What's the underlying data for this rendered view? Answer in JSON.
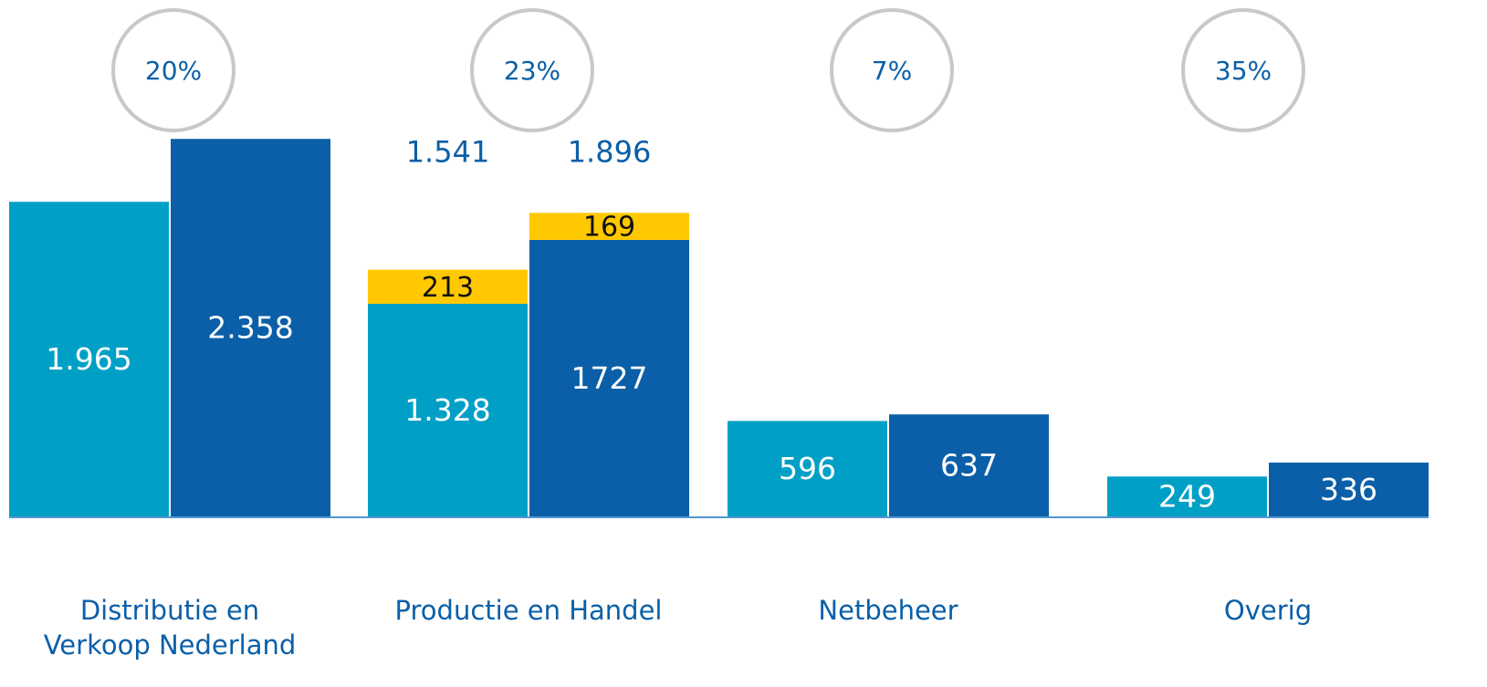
{
  "chart_data": {
    "type": "stacked-grouped-bar",
    "categories": [
      "Distributie en\nVerkoop Nederland",
      "Productie en Handel",
      "Netbeheer",
      "Overig"
    ],
    "series": [
      {
        "stack": 0,
        "color": "#00a0c6",
        "values": [
          1965,
          1328,
          596,
          249
        ],
        "value_labels": [
          "1.965",
          "1.328",
          "596",
          "249"
        ]
      },
      {
        "stack": 0,
        "color": "#ffc800",
        "values": [
          null,
          213,
          null,
          null
        ]
      },
      {
        "stack": 1,
        "color": "#0a5fa8",
        "values": [
          2358,
          1727,
          637,
          336
        ],
        "value_labels": [
          "2.358",
          "1727",
          "637",
          "336"
        ]
      },
      {
        "stack": 1,
        "color": "#ffc800",
        "values": [
          null,
          169,
          null,
          null
        ]
      }
    ],
    "totals": [
      {
        "stack": 0,
        "values": [
          null,
          1541,
          null,
          null
        ],
        "value_labels": [
          null,
          "1.541",
          null,
          null
        ]
      },
      {
        "stack": 1,
        "values": [
          null,
          1896,
          null,
          null
        ],
        "value_labels": [
          null,
          "1.896",
          null,
          null
        ]
      }
    ],
    "growth": {
      "values": [
        20,
        23,
        7,
        35
      ],
      "value_labels": [
        "20%",
        "23%",
        "7%",
        "35%"
      ]
    },
    "ylim": [
      0,
      3220
    ]
  }
}
